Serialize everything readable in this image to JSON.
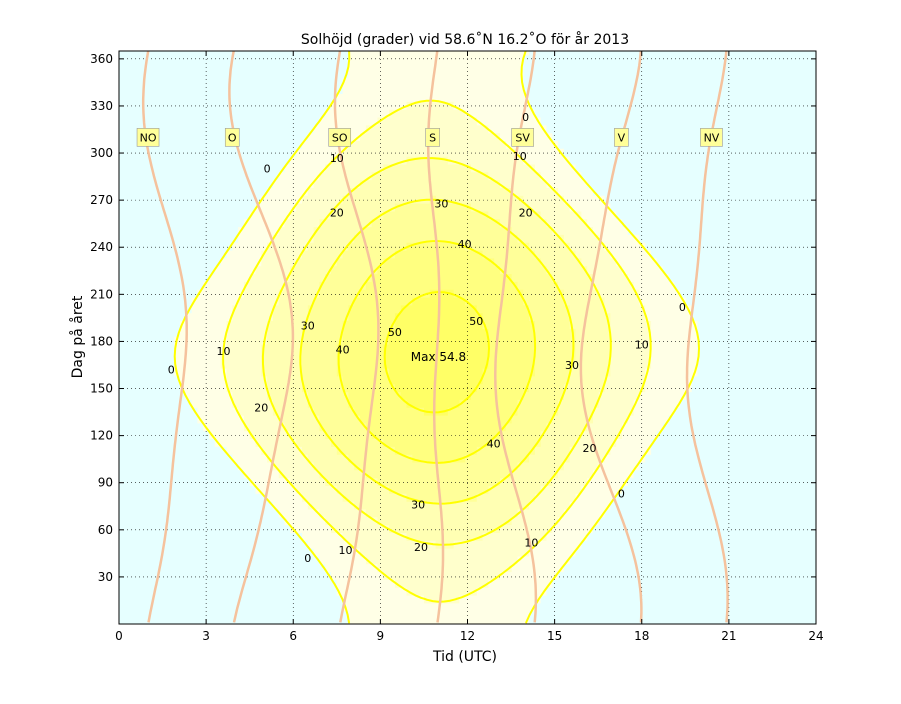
{
  "chart_data": {
    "type": "contour",
    "title": "Solhöjd (grader) vid 58.6˚N 16.2˚O för år 2013",
    "xlabel": "Tid (UTC)",
    "ylabel": "Dag på året",
    "xlim": [
      0,
      24
    ],
    "ylim": [
      0,
      365
    ],
    "xticks": [
      0,
      3,
      6,
      9,
      12,
      15,
      18,
      21,
      24
    ],
    "yticks": [
      30,
      60,
      90,
      120,
      150,
      180,
      210,
      240,
      270,
      300,
      330,
      360
    ],
    "grid": true,
    "contour_levels": [
      0,
      10,
      20,
      30,
      40,
      50
    ],
    "max_annotation": {
      "text": "Max 54.8",
      "x": 11,
      "y": 170
    },
    "contour_labels": [
      {
        "text": "0",
        "x": 1.8,
        "y": 162
      },
      {
        "text": "0",
        "x": 5.1,
        "y": 290
      },
      {
        "text": "0",
        "x": 14.0,
        "y": 323
      },
      {
        "text": "0",
        "x": 19.4,
        "y": 202
      },
      {
        "text": "0",
        "x": 17.3,
        "y": 83
      },
      {
        "text": "0",
        "x": 6.5,
        "y": 42
      },
      {
        "text": "10",
        "x": 3.6,
        "y": 174
      },
      {
        "text": "10",
        "x": 7.5,
        "y": 297
      },
      {
        "text": "10",
        "x": 13.8,
        "y": 298
      },
      {
        "text": "10",
        "x": 18.0,
        "y": 178
      },
      {
        "text": "10",
        "x": 14.2,
        "y": 52
      },
      {
        "text": "10",
        "x": 7.8,
        "y": 47
      },
      {
        "text": "20",
        "x": 4.9,
        "y": 138
      },
      {
        "text": "20",
        "x": 7.5,
        "y": 262
      },
      {
        "text": "20",
        "x": 14.0,
        "y": 262
      },
      {
        "text": "20",
        "x": 16.2,
        "y": 112
      },
      {
        "text": "20",
        "x": 10.4,
        "y": 49
      },
      {
        "text": "30",
        "x": 6.5,
        "y": 190
      },
      {
        "text": "30",
        "x": 11.1,
        "y": 268
      },
      {
        "text": "30",
        "x": 15.6,
        "y": 165
      },
      {
        "text": "30",
        "x": 10.3,
        "y": 76
      },
      {
        "text": "40",
        "x": 7.7,
        "y": 175
      },
      {
        "text": "40",
        "x": 11.9,
        "y": 242
      },
      {
        "text": "40",
        "x": 12.9,
        "y": 115
      },
      {
        "text": "50",
        "x": 9.5,
        "y": 186
      },
      {
        "text": "50",
        "x": 12.3,
        "y": 193
      }
    ],
    "direction_labels": [
      {
        "text": "NO",
        "x": 1.0,
        "y": 310
      },
      {
        "text": "O",
        "x": 3.9,
        "y": 310
      },
      {
        "text": "SO",
        "x": 7.6,
        "y": 310
      },
      {
        "text": "S",
        "x": 10.8,
        "y": 310
      },
      {
        "text": "SV",
        "x": 13.9,
        "y": 310
      },
      {
        "text": "V",
        "x": 17.3,
        "y": 310
      },
      {
        "text": "NV",
        "x": 20.4,
        "y": 310
      }
    ],
    "colors": {
      "night": "#e6ffff",
      "contour_line": "#ffff00",
      "azimuth_line": "#f5c29d",
      "label_box": "#ffff99"
    }
  }
}
